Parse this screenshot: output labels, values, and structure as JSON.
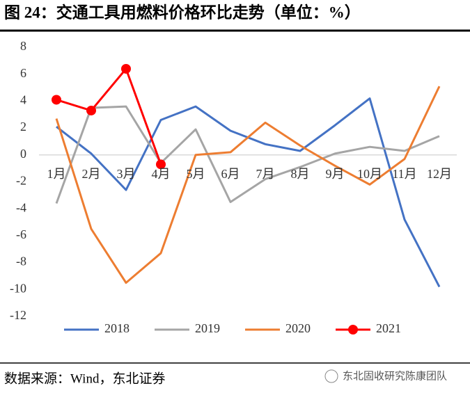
{
  "chart_data": {
    "type": "line",
    "title": "图 24：交通工具用燃料价格环比走势（单位：%）",
    "source": "数据来源：Wind，东北证券",
    "watermark": "东北固收研究陈康团队",
    "categories": [
      "1月",
      "2月",
      "3月",
      "4月",
      "5月",
      "6月",
      "7月",
      "8月",
      "9月",
      "10月",
      "11月",
      "12月"
    ],
    "series": [
      {
        "name": "2018",
        "color": "#4472c4",
        "values": [
          2.1,
          0.1,
          -2.6,
          2.6,
          3.6,
          1.8,
          0.8,
          0.3,
          2.2,
          4.2,
          -4.8,
          -9.8
        ]
      },
      {
        "name": "2019",
        "color": "#a5a5a5",
        "values": [
          -3.6,
          3.5,
          3.6,
          -0.6,
          1.9,
          -3.5,
          -1.8,
          -0.9,
          0.1,
          0.6,
          0.3,
          1.4
        ]
      },
      {
        "name": "2020",
        "color": "#ed7d31",
        "values": [
          2.7,
          -5.5,
          -9.5,
          -7.3,
          0,
          0.2,
          2.4,
          0.7,
          -0.8,
          -2.2,
          -0.3,
          5.1
        ]
      },
      {
        "name": "2021",
        "color": "#ff0000",
        "markers": true,
        "values": [
          4.1,
          3.3,
          6.4,
          -0.7,
          null,
          null,
          null,
          null,
          null,
          null,
          null,
          null
        ]
      }
    ],
    "ylim": [
      -12,
      8
    ],
    "yticks": [
      -12,
      -10,
      -8,
      -6,
      -4,
      -2,
      0,
      2,
      4,
      6,
      8
    ],
    "legend": "bottom"
  }
}
